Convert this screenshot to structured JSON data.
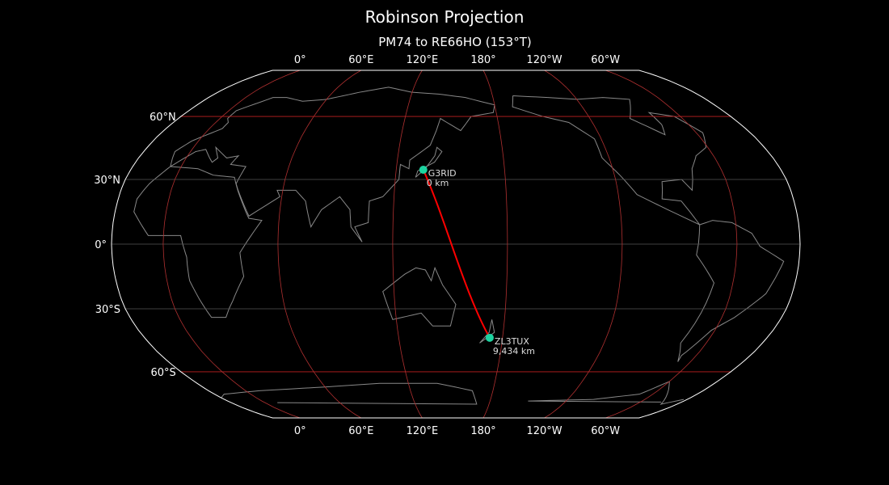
{
  "title": "Robinson Projection",
  "subtitle": "PM74 to RE66HO (153°T)",
  "projection": "Robinson",
  "central_longitude": 153,
  "colors": {
    "background": "#000000",
    "graticule_lon": "#b03030",
    "graticule_lat_major": "#c02020",
    "graticule_lat": "#555555",
    "coastline": "#888888",
    "path": "#ff0000",
    "point": "#1dd3a0",
    "border": "#ffffff"
  },
  "lon_ticks": [
    {
      "lon": 0,
      "label": "0°"
    },
    {
      "lon": 60,
      "label": "60°E"
    },
    {
      "lon": 120,
      "label": "120°E"
    },
    {
      "lon": 180,
      "label": "180°"
    },
    {
      "lon": -120,
      "label": "120°W"
    },
    {
      "lon": -60,
      "label": "60°W"
    }
  ],
  "lat_ticks": [
    {
      "lat": 60,
      "label": "60°N"
    },
    {
      "lat": 30,
      "label": "30°N"
    },
    {
      "lat": 0,
      "label": "0°"
    },
    {
      "lat": -30,
      "label": "30°S"
    },
    {
      "lat": -60,
      "label": "60°S"
    }
  ],
  "points": [
    {
      "name": "G3RID",
      "distance": "0 km",
      "lat": 34.5,
      "lon": 135
    },
    {
      "name": "ZL3TUX",
      "distance": "9,434 km",
      "lat": -43.5,
      "lon": 172.6
    }
  ]
}
